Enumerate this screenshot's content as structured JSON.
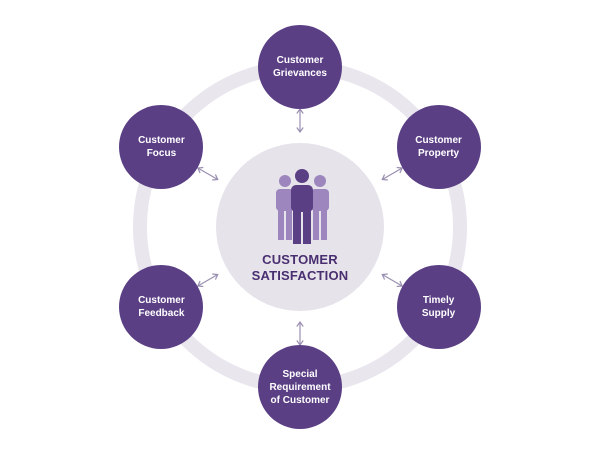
{
  "colors": {
    "node": "#5b3f85",
    "ring": "#e9e6ee",
    "center": "#e6e3eb",
    "arrow": "#9a8fb0",
    "people_front": "#5b3f85",
    "people_back": "#9c86bd",
    "title": "#4a2f70"
  },
  "center": {
    "icon": "people-group-icon",
    "title": "CUSTOMER\nSATISFACTION"
  },
  "nodes": [
    {
      "label": "Customer\nGrievances"
    },
    {
      "label": "Customer\nProperty"
    },
    {
      "label": "Timely\nSupply"
    },
    {
      "label": "Special\nRequirement\nof Customer"
    },
    {
      "label": "Customer\nFeedback"
    },
    {
      "label": "Customer\nFocus"
    }
  ]
}
